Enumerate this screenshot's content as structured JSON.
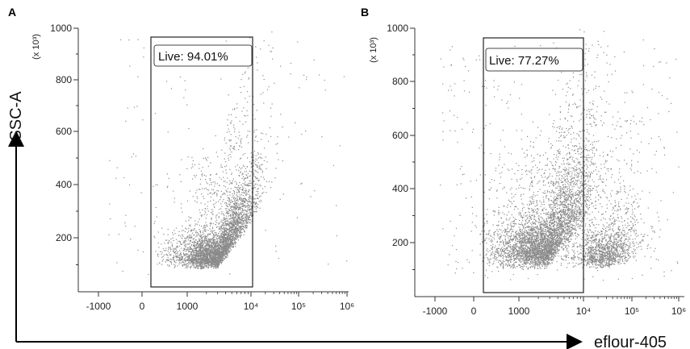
{
  "figure": {
    "x_axis_title": "eflour-405",
    "y_axis_title": "SSC-A"
  },
  "chart_data": [
    {
      "type": "scatter",
      "panel": "A",
      "y_unit_label": "(x 10³)",
      "x_scale": "biexponential",
      "x_ticks": [
        "-1000",
        "0",
        "1000",
        "10⁴",
        "10⁵",
        "10⁶"
      ],
      "y_ticks": [
        "200",
        "400",
        "600",
        "800",
        "1000"
      ],
      "ylim": [
        0,
        1000
      ],
      "gate": {
        "label": "Live: 94.01%",
        "x_range": [
          300,
          10000
        ],
        "y_range": [
          0,
          960
        ]
      },
      "population": {
        "n_points": 4200,
        "seed": 11,
        "clusters": [
          {
            "weight": 1.0,
            "x_center": 3000,
            "x_spread_decades": 0.32,
            "y_center": 120,
            "y_spread": 55,
            "tilt": 320
          }
        ],
        "outlier_fraction": 0.03
      }
    },
    {
      "type": "scatter",
      "panel": "B",
      "y_unit_label": "(x 10³)",
      "x_scale": "biexponential",
      "x_ticks": [
        "-1000",
        "0",
        "1000",
        "10⁴",
        "10⁵",
        "10⁶"
      ],
      "y_ticks": [
        "200",
        "400",
        "600",
        "800",
        "1000"
      ],
      "ylim": [
        0,
        1000
      ],
      "gate": {
        "label": "Live: 77.27%",
        "x_range": [
          300,
          9000
        ],
        "y_range": [
          0,
          960
        ]
      },
      "population": {
        "n_points": 6200,
        "seed": 29,
        "clusters": [
          {
            "weight": 0.75,
            "x_center": 2600,
            "x_spread_decades": 0.38,
            "y_center": 150,
            "y_spread": 80,
            "tilt": 260
          },
          {
            "weight": 0.25,
            "x_center": 30000,
            "x_spread_decades": 0.35,
            "y_center": 140,
            "y_spread": 60,
            "tilt": 40
          }
        ],
        "outlier_fraction": 0.05
      }
    }
  ]
}
